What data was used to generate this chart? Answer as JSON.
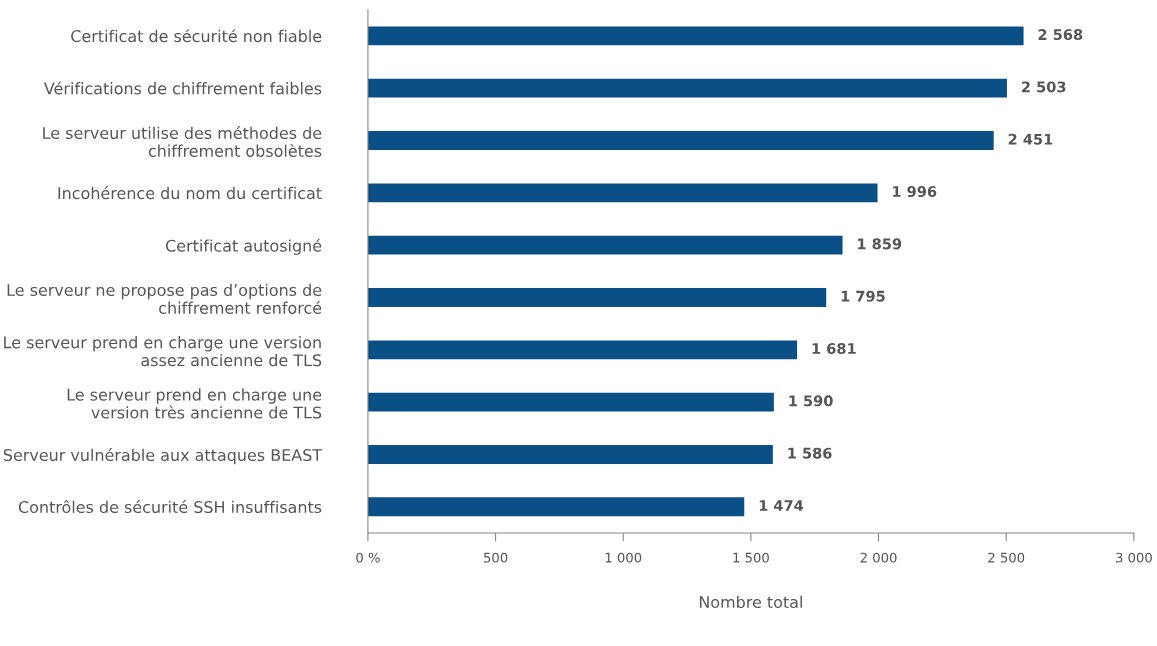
{
  "chart_data": {
    "type": "bar",
    "orientation": "horizontal",
    "xlabel": "Nombre total",
    "categories": [
      "Certificat de sécurité non fiable",
      "Vérifications de chiffrement faibles",
      "Le serveur utilise des méthodes de\nchiffrement obsolètes",
      "Incohérence du nom du certificat",
      "Certificat autosigné",
      "Le serveur ne propose pas d’options de\nchiffrement renforcé",
      "Le serveur prend en charge une version\nassez ancienne de TLS",
      "Le serveur prend en charge une\nversion très ancienne de TLS",
      "Serveur vulnérable aux attaques BEAST",
      "Contrôles de sécurité SSH insuffisants"
    ],
    "series": [
      {
        "color": "#0a4f86",
        "values": [
          2568,
          2503,
          2451,
          1996,
          1859,
          1795,
          1681,
          1590,
          1586,
          1474
        ],
        "value_labels": [
          "2 568",
          "2 503",
          "2 451",
          "1 996",
          "1 859",
          "1 795",
          "1 681",
          "1 590",
          "1 586",
          "1 474"
        ]
      }
    ],
    "xlim": [
      0,
      3000
    ],
    "xticks": [
      {
        "value": 0,
        "label": "0 %"
      },
      500,
      {
        "value": 1000,
        "label": "1 000"
      },
      {
        "value": 1500,
        "label": "1 500"
      },
      {
        "value": 2000,
        "label": "2 000"
      },
      {
        "value": 2500,
        "label": "2 500"
      },
      {
        "value": 3000,
        "label": "3 000"
      }
    ],
    "grid": false,
    "legend": false
  }
}
